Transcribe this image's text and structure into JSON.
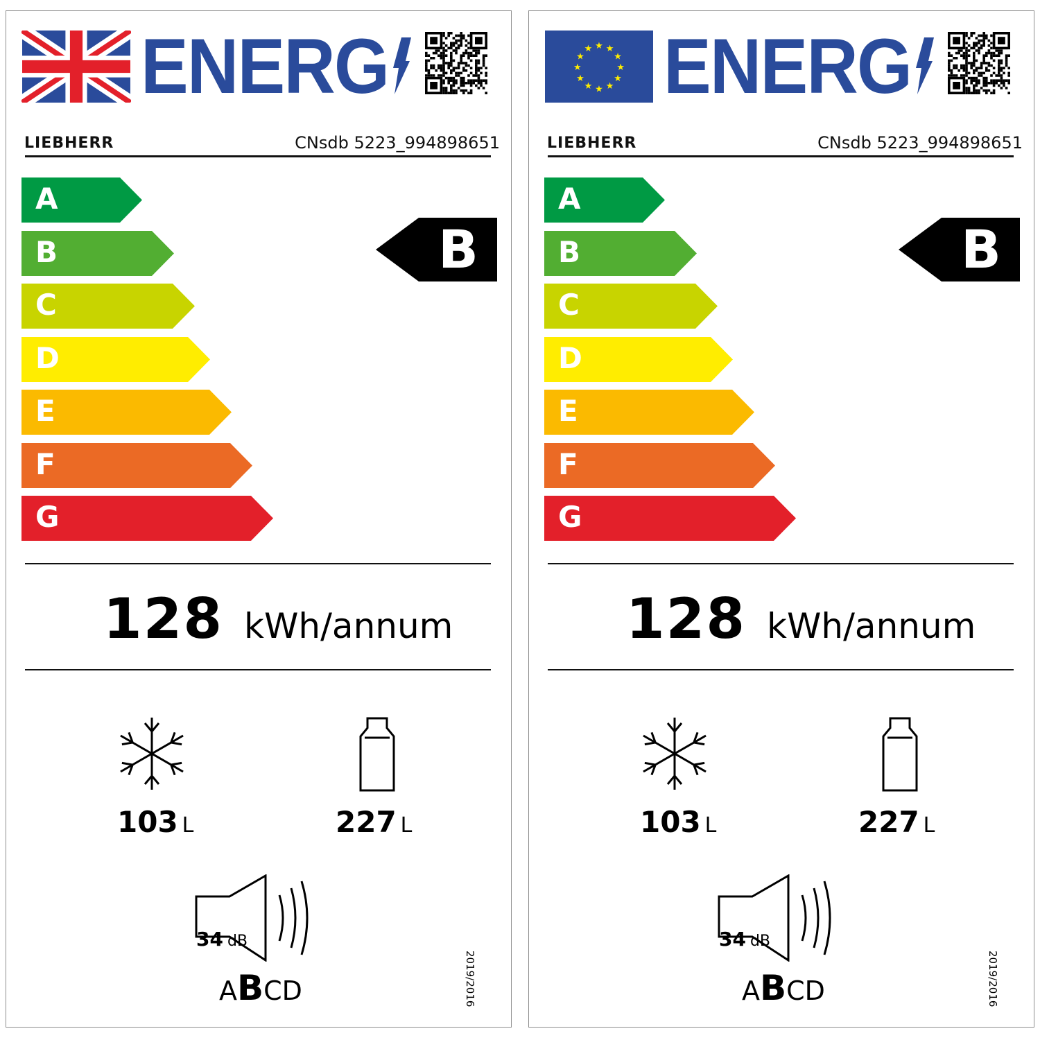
{
  "colors": {
    "energy_blue": "#2a4b9b",
    "A": "#009a44",
    "B": "#52ae32",
    "C": "#c8d400",
    "D": "#ffed00",
    "E": "#fbba00",
    "F": "#eb6a25",
    "G": "#e3202a"
  },
  "labels": [
    {
      "flag": "uk-flag",
      "title": "ENERG",
      "brand": "LIEBHERR",
      "model": "CNsdb 5223_994898651",
      "scale": [
        "A",
        "B",
        "C",
        "D",
        "E",
        "F",
        "G"
      ],
      "energy_class": "B",
      "consumption": "128",
      "consumption_unit": "kWh/annum",
      "freezer_volume": "103",
      "freezer_unit": "L",
      "fridge_volume": "227",
      "fridge_unit": "L",
      "noise_value": "34",
      "noise_unit": "dB",
      "noise_classes": [
        "A",
        "B",
        "C",
        "D"
      ],
      "noise_class": "B",
      "regulation": "2019/2016"
    },
    {
      "flag": "eu-flag",
      "title": "ENERG",
      "brand": "LIEBHERR",
      "model": "CNsdb 5223_994898651",
      "scale": [
        "A",
        "B",
        "C",
        "D",
        "E",
        "F",
        "G"
      ],
      "energy_class": "B",
      "consumption": "128",
      "consumption_unit": "kWh/annum",
      "freezer_volume": "103",
      "freezer_unit": "L",
      "fridge_volume": "227",
      "fridge_unit": "L",
      "noise_value": "34",
      "noise_unit": "dB",
      "noise_classes": [
        "A",
        "B",
        "C",
        "D"
      ],
      "noise_class": "B",
      "regulation": "2019/2016"
    }
  ]
}
